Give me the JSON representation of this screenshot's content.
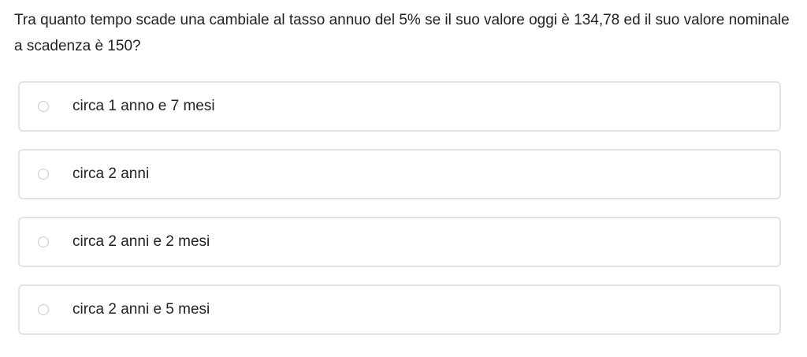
{
  "question": "Tra quanto tempo scade una cambiale al tasso annuo del 5% se il suo valore oggi è 134,78 ed il suo valore nominale a scadenza è 150?",
  "options": [
    {
      "label": "circa 1 anno e 7 mesi",
      "selected": false
    },
    {
      "label": "circa 2 anni",
      "selected": false
    },
    {
      "label": "circa 2 anni e 2 mesi",
      "selected": false
    },
    {
      "label": "circa 2 anni e 5 mesi",
      "selected": false
    }
  ]
}
